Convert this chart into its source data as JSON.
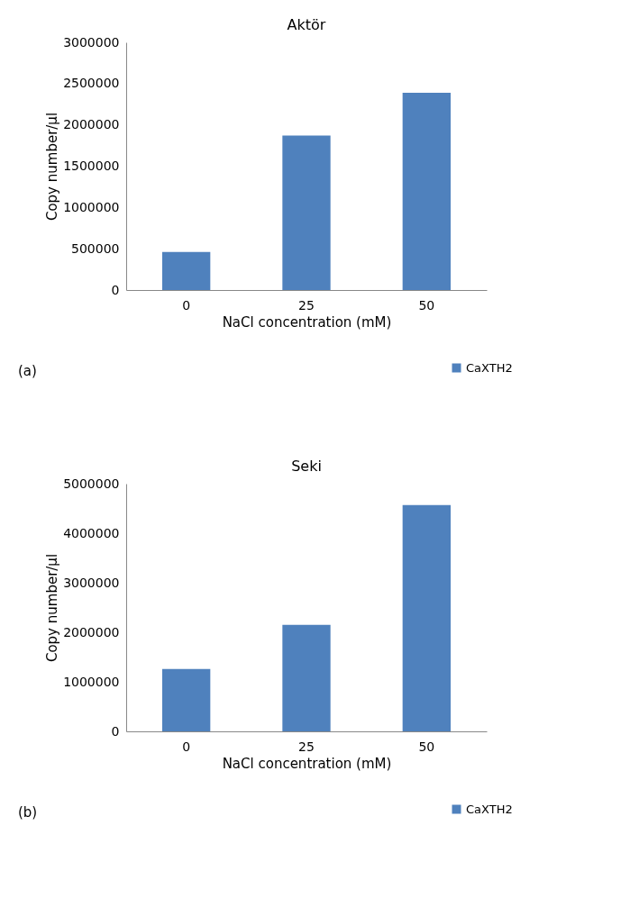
{
  "chart_data": [
    {
      "type": "bar",
      "title": "Aktör",
      "xlabel": "NaCl concentration (mM)",
      "ylabel": "Copy number/µl",
      "categories": [
        "0",
        "25",
        "50"
      ],
      "series": [
        {
          "name": "CaXTH2",
          "color": "#4f81bd",
          "values": [
            460000,
            1870000,
            2390000
          ]
        }
      ],
      "ylim": [
        0,
        3000000
      ],
      "yticks": [
        0,
        500000,
        1000000,
        1500000,
        2000000,
        2500000,
        3000000
      ],
      "grid": false,
      "legend": "bottom right",
      "annotations": [
        "(a)"
      ]
    },
    {
      "type": "bar",
      "title": "Seki",
      "xlabel": "NaCl concentration (mM)",
      "ylabel": "Copy number/µl",
      "categories": [
        "0",
        "25",
        "50"
      ],
      "series": [
        {
          "name": "CaXTH2",
          "color": "#4f81bd",
          "values": [
            1260000,
            2150000,
            4570000
          ]
        }
      ],
      "ylim": [
        0,
        5000000
      ],
      "yticks": [
        0,
        1000000,
        2000000,
        3000000,
        4000000,
        5000000
      ],
      "grid": false,
      "legend": "bottom right",
      "annotations": [
        "(b)"
      ]
    }
  ]
}
